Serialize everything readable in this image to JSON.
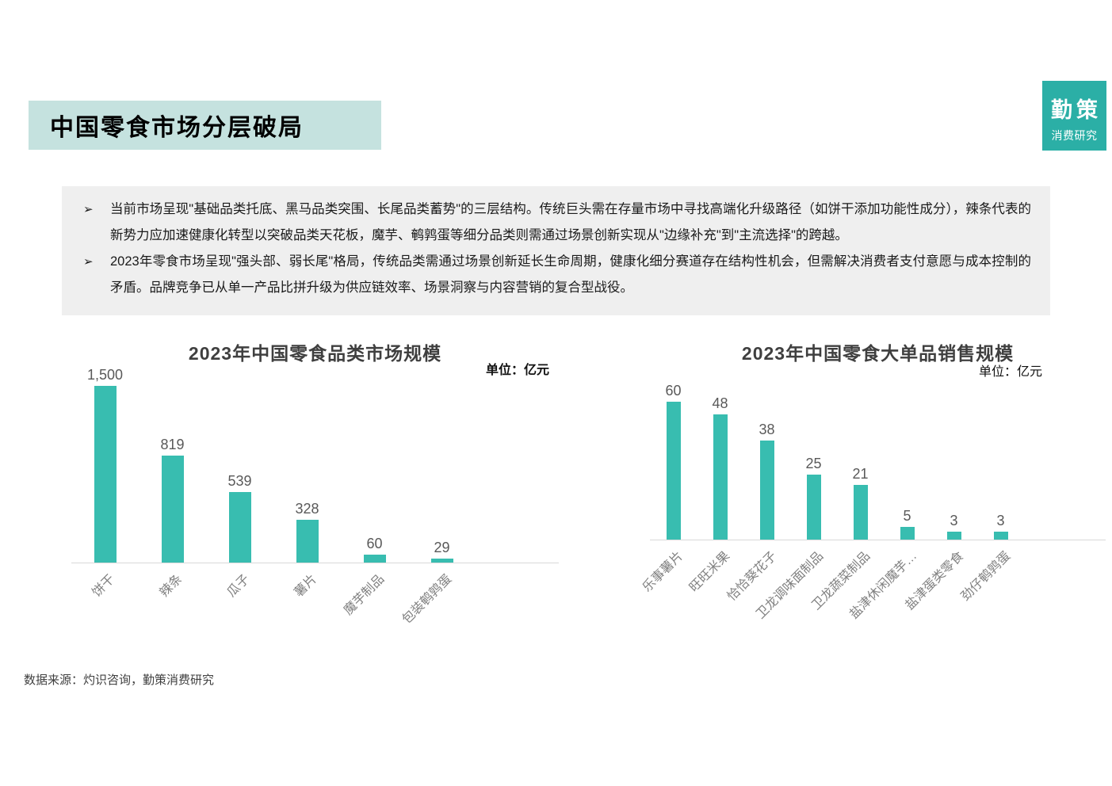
{
  "page": {
    "title": "中国零食市场分层破局",
    "logo": {
      "name": "勤策",
      "subtitle": "消费研究"
    },
    "footer_source": "数据来源：灼识咨询，勤策消费研究"
  },
  "colors": {
    "bar_teal": "#38bdb0",
    "logo_teal": "#2bafa6",
    "title_band_bg": "#c5e2df",
    "summary_bg": "#efefef",
    "axis_gray": "#d9d9d9"
  },
  "summary": {
    "marker": "➢",
    "bullets": [
      "当前市场呈现\"基础品类托底、黑马品类突围、长尾品类蓄势\"的三层结构。传统巨头需在存量市场中寻找高端化升级路径（如饼干添加功能性成分），辣条代表的新势力应加速健康化转型以突破品类天花板，魔芋、鹌鹑蛋等细分品类则需通过场景创新实现从\"边缘补充\"到\"主流选择\"的跨越。",
      "2023年零食市场呈现\"强头部、弱长尾\"格局，传统品类需通过场景创新延长生命周期，健康化细分赛道存在结构性机会，但需解决消费者支付意愿与成本控制的矛盾。品牌竞争已从单一产品比拼升级为供应链效率、场景洞察与内容营销的复合型战役。"
    ]
  },
  "chart_data": [
    {
      "type": "bar",
      "title": "2023年中国零食品类市场规模",
      "unit_label": "单位：亿元",
      "categories": [
        "饼干",
        "辣条",
        "瓜子",
        "薯片",
        "魔芋制品",
        "包装鹌鹑蛋"
      ],
      "values": [
        1500,
        819,
        539,
        328,
        60,
        29
      ],
      "value_labels": [
        "1,500",
        "819",
        "539",
        "328",
        "60",
        "29"
      ],
      "ylim": [
        0,
        1500
      ],
      "bar_color": "#38bdb0",
      "grid": false,
      "legend": "none",
      "xlabel": "",
      "ylabel": ""
    },
    {
      "type": "bar",
      "title": "2023年中国零食大单品销售规模",
      "unit_label": "单位：亿元",
      "categories": [
        "乐事薯片",
        "旺旺米果",
        "恰恰葵花子",
        "卫龙调味面制品",
        "卫龙蔬菜制品",
        "盐津休闲魔芋…",
        "盐津蛋类零食",
        "劲仔鹌鹑蛋"
      ],
      "values": [
        60,
        48,
        38,
        25,
        21,
        5,
        3,
        3
      ],
      "value_labels": [
        "60",
        "48",
        "38",
        "25",
        "21",
        "5",
        "3",
        "3"
      ],
      "ylim": [
        0,
        60
      ],
      "bar_color": "#38bdb0",
      "grid": false,
      "legend": "none",
      "xlabel": "",
      "ylabel": ""
    }
  ]
}
